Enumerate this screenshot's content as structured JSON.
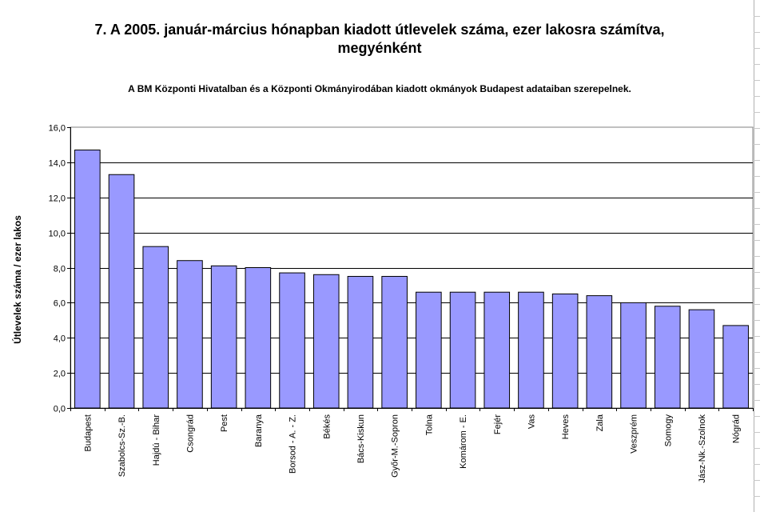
{
  "chart_data": {
    "type": "bar",
    "title_line1": "7. A 2005. január-március hónapban kiadott útlevelek száma, ezer lakosra számítva,",
    "title_line2": "megyénként",
    "subtitle": "A BM Központi Hivatalban és a Központi Okmányirodában kiadott okmányok Budapest adataiban szerepelnek.",
    "xlabel": "",
    "ylabel": "Útlevelek száma / ezer lakos",
    "ylim": [
      0,
      16
    ],
    "yticks": [
      "0,0",
      "2,0",
      "4,0",
      "6,0",
      "8,0",
      "10,0",
      "12,0",
      "14,0",
      "16,0"
    ],
    "grid": true,
    "bar_color": "#9999ff",
    "categories": [
      "Budapest",
      "Szabolcs-Sz.-B.",
      "Hajdú - Bihar",
      "Csongrád",
      "Pest",
      "Baranya",
      "Borsod - A. - Z.",
      "Békés",
      "Bács-Kiskun",
      "Győr-M.-Sopron",
      "Tolna",
      "Komárom - E.",
      "Fejér",
      "Vas",
      "Heves",
      "Zala",
      "Veszprém",
      "Somogy",
      "Jász-Nk.-Szolnok",
      "Nógrád"
    ],
    "values": [
      14.7,
      13.3,
      9.2,
      8.4,
      8.1,
      8.0,
      7.7,
      7.6,
      7.5,
      7.5,
      6.6,
      6.6,
      6.6,
      6.6,
      6.5,
      6.4,
      6.0,
      5.8,
      5.6,
      4.7
    ]
  }
}
